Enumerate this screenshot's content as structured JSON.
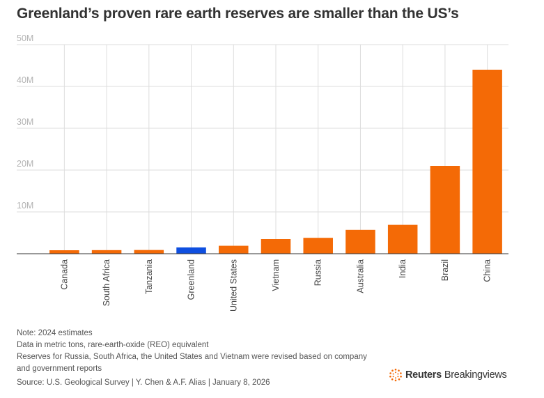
{
  "title": "Greenland’s proven rare earth reserves are smaller than the US’s",
  "chart_data": {
    "type": "bar",
    "title": "Greenland’s proven rare earth reserves are smaller than the US’s",
    "xlabel": "",
    "ylabel": "",
    "ylim": [
      0,
      50000000
    ],
    "yticks": [
      0,
      10000000,
      20000000,
      30000000,
      40000000,
      50000000
    ],
    "ytick_labels": [
      "",
      "10M",
      "20M",
      "30M",
      "40M",
      "50M"
    ],
    "categories": [
      "Canada",
      "South Africa",
      "Tanzania",
      "Greenland",
      "United States",
      "Vietnam",
      "Russia",
      "Australia",
      "India",
      "Brazil",
      "China"
    ],
    "values": [
      830000,
      860000,
      890000,
      1500000,
      1900000,
      3500000,
      3800000,
      5700000,
      6900000,
      21000000,
      44000000
    ],
    "highlight": "Greenland",
    "colors": {
      "default": "#f46a06",
      "highlight": "#0f4fe0",
      "grid": "#dddddd",
      "axis": "#333333"
    }
  },
  "notes": [
    "Note: 2024 estimates",
    "Data in metric tons, rare-earth-oxide (REO) equivalent",
    "Reserves for Russia, South Africa, the United States and Vietnam were revised based on company and government reports"
  ],
  "source": "Source: U.S. Geological Survey | Y. Chen & A.F. Alias | January 8, 2026",
  "logo": {
    "brand": "Reuters",
    "product": "Breakingviews",
    "icon": "reuters-dots-icon"
  }
}
